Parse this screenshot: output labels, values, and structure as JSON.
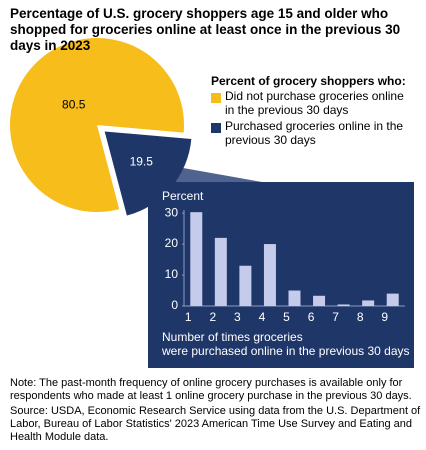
{
  "chart_data": [
    {
      "type": "pie",
      "title": "Percentage of U.S. grocery shoppers age 15 and older who shopped for groceries online at least once in the previous 30 days in 2023",
      "legend_title": "Percent of grocery shoppers who:",
      "categories": [
        "Did not purchase groceries online in the previous 30 days",
        "Purchased groceries online in the previous 30 days"
      ],
      "values": [
        80.5,
        19.5
      ],
      "colors": [
        "#f6bd1b",
        "#1f3668"
      ]
    },
    {
      "type": "bar",
      "ylabel": "Percent",
      "xlabel": [
        "Number of times groceries",
        "were purchased online in the previous 30 days"
      ],
      "categories": [
        "1",
        "2",
        "3",
        "4",
        "5",
        "6",
        "7",
        "8",
        "9"
      ],
      "values": [
        30.3,
        22,
        13,
        20,
        5,
        3.3,
        0.5,
        1.8,
        4
      ],
      "color": "#c5cbea",
      "ylim": [
        0,
        31
      ],
      "yticks": [
        0,
        10,
        20,
        30
      ]
    }
  ],
  "notes": [
    "Note: The past-month frequency of online grocery purchases is available only for respondents who made at least 1 online grocery purchase in the previous 30 days.",
    "Source: USDA, Economic Research Service using data from the U.S. Department of Labor, Bureau of Labor Statistics' 2023 American Time Use Survey and Eating and Health Module data."
  ]
}
